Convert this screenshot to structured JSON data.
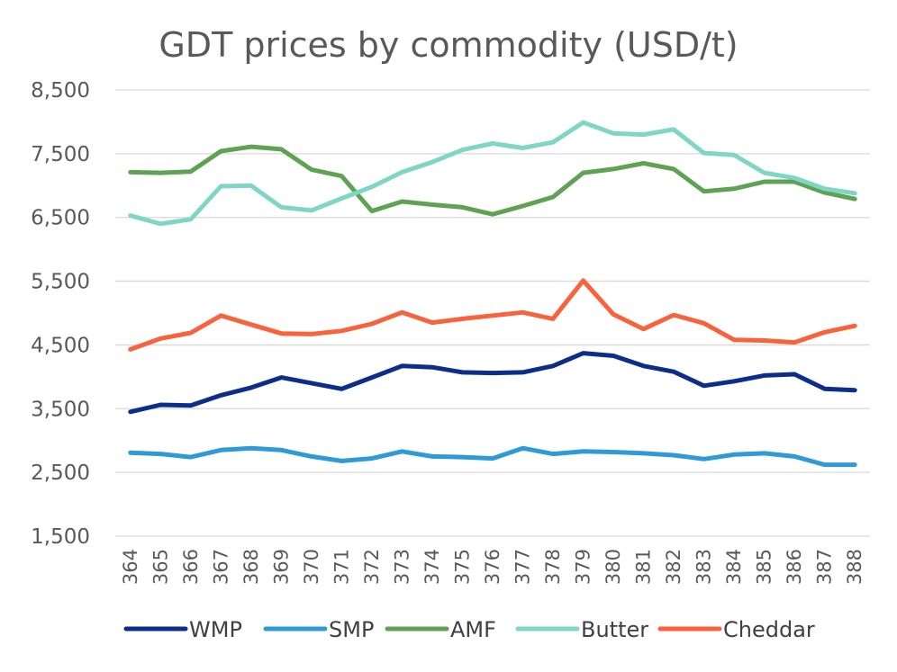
{
  "chart_data": {
    "type": "line",
    "title": "GDT prices by commodity (USD/t)",
    "xlabel": "",
    "ylabel": "",
    "ylim": [
      1500,
      8500
    ],
    "yticks": [
      1500,
      2500,
      3500,
      4500,
      5500,
      6500,
      7500,
      8500
    ],
    "ytick_labels": [
      "1,500",
      "2,500",
      "3,500",
      "4,500",
      "5,500",
      "6,500",
      "7,500",
      "8,500"
    ],
    "grid": true,
    "legend_position": "bottom",
    "categories": [
      "364",
      "365",
      "366",
      "367",
      "368",
      "369",
      "370",
      "371",
      "372",
      "373",
      "374",
      "375",
      "376",
      "377",
      "378",
      "379",
      "380",
      "381",
      "382",
      "383",
      "384",
      "385",
      "386",
      "387",
      "388"
    ],
    "series": [
      {
        "name": "WMP",
        "color": "#0d2d8a",
        "values": [
          3450,
          3560,
          3550,
          3710,
          3830,
          3990,
          3900,
          3810,
          3990,
          4170,
          4150,
          4070,
          4060,
          4070,
          4170,
          4370,
          4330,
          4170,
          4080,
          3860,
          3930,
          4020,
          4040,
          3810,
          3790
        ]
      },
      {
        "name": "SMP",
        "color": "#2e9ad8",
        "values": [
          2810,
          2790,
          2740,
          2850,
          2880,
          2850,
          2750,
          2680,
          2720,
          2830,
          2750,
          2740,
          2720,
          2880,
          2790,
          2830,
          2820,
          2800,
          2770,
          2710,
          2780,
          2800,
          2750,
          2620,
          2620
        ]
      },
      {
        "name": "AMF",
        "color": "#5fa253",
        "values": [
          7210,
          7200,
          7220,
          7540,
          7610,
          7570,
          7250,
          7150,
          6600,
          6750,
          6700,
          6660,
          6550,
          6680,
          6820,
          7200,
          7260,
          7350,
          7260,
          6910,
          6950,
          7060,
          7060,
          6890,
          6790
        ]
      },
      {
        "name": "Butter",
        "color": "#7fd6c4",
        "values": [
          6530,
          6400,
          6470,
          6990,
          7000,
          6660,
          6610,
          6800,
          6980,
          7210,
          7370,
          7560,
          7660,
          7590,
          7680,
          7990,
          7820,
          7800,
          7880,
          7510,
          7480,
          7200,
          7120,
          6950,
          6880
        ]
      },
      {
        "name": "Cheddar",
        "color": "#f8633c",
        "values": [
          4430,
          4600,
          4690,
          4960,
          4820,
          4680,
          4670,
          4720,
          4830,
          5010,
          4850,
          4910,
          4960,
          5010,
          4910,
          5510,
          4980,
          4750,
          4970,
          4840,
          4580,
          4570,
          4540,
          4700,
          4800
        ]
      }
    ]
  }
}
